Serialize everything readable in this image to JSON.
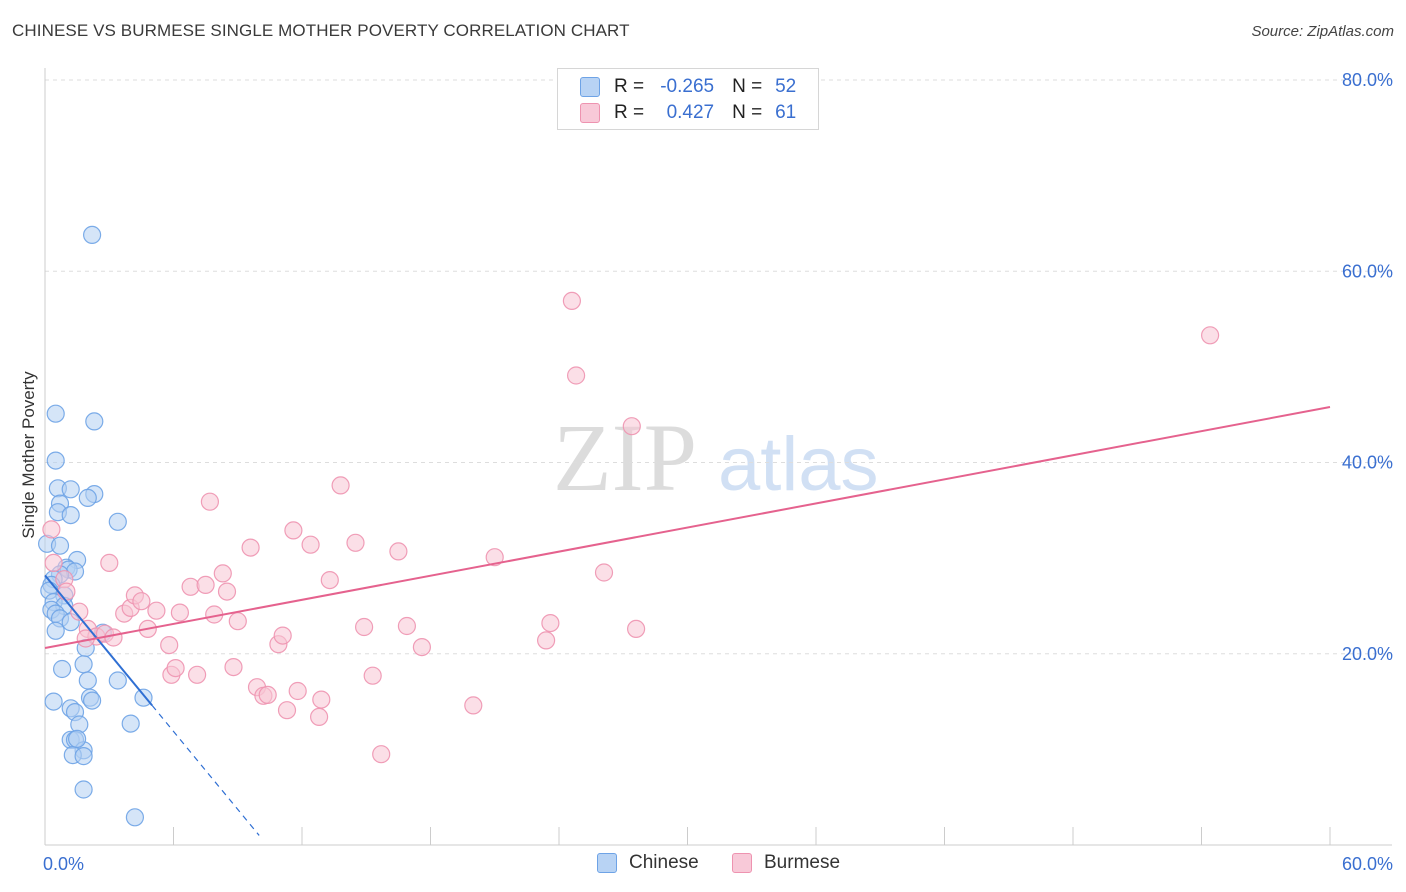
{
  "title": "CHINESE VS BURMESE SINGLE MOTHER POVERTY CORRELATION CHART",
  "source": "Source: ZipAtlas.com",
  "watermark": {
    "zip": "ZIP",
    "atlas": "atlas"
  },
  "legend": {
    "rows": [
      {
        "r_label": "R =",
        "r_value": "-0.265",
        "n_label": "N =",
        "n_value": "52",
        "color": "#6ea3e6",
        "fill": "#b8d3f4"
      },
      {
        "r_label": "R =",
        "r_value": "0.427",
        "n_label": "N =",
        "n_value": "61",
        "color": "#ee93b0",
        "fill": "#f8c9d8"
      }
    ]
  },
  "series_legend": [
    {
      "label": "Chinese",
      "color": "#6ea3e6",
      "fill": "#b8d3f4"
    },
    {
      "label": "Burmese",
      "color": "#ee93b0",
      "fill": "#f8c9d8"
    }
  ],
  "colors": {
    "chinese_stroke": "#6ea3e6",
    "chinese_fill": "#b3cff2",
    "chinese_line": "#2f6fd3",
    "burmese_stroke": "#ee93b0",
    "burmese_fill": "#f7c4d4",
    "burmese_line": "#e5628e",
    "axis_label": "#3a6fd0",
    "grid": "#dddddd"
  },
  "chart_data": {
    "type": "scatter",
    "title": "CHINESE VS BURMESE SINGLE MOTHER POVERTY CORRELATION CHART",
    "xlabel": "",
    "ylabel": "Single Mother Poverty",
    "xlim": [
      0,
      60
    ],
    "ylim": [
      0,
      80
    ],
    "x_tick_labels": [
      {
        "value": 0,
        "label": "0.0%"
      },
      {
        "value": 60,
        "label": "60.0%"
      }
    ],
    "y_tick_labels": [
      {
        "value": 20,
        "label": "20.0%"
      },
      {
        "value": 40,
        "label": "40.0%"
      },
      {
        "value": 60,
        "label": "60.0%"
      },
      {
        "value": 80,
        "label": "80.0%"
      }
    ],
    "x_minor_ticks": [
      0,
      6,
      12,
      18,
      24,
      30,
      36,
      42,
      48,
      54,
      60
    ],
    "series": [
      {
        "name": "Chinese",
        "points": [
          [
            2.2,
            63.8
          ],
          [
            0.5,
            45.1
          ],
          [
            2.3,
            44.3
          ],
          [
            0.5,
            40.2
          ],
          [
            0.6,
            37.3
          ],
          [
            1.2,
            37.2
          ],
          [
            2.3,
            36.7
          ],
          [
            2.0,
            36.3
          ],
          [
            0.7,
            35.7
          ],
          [
            0.6,
            34.8
          ],
          [
            1.2,
            34.5
          ],
          [
            3.4,
            33.8
          ],
          [
            0.1,
            31.5
          ],
          [
            0.7,
            31.3
          ],
          [
            1.5,
            29.8
          ],
          [
            1.0,
            29.0
          ],
          [
            1.1,
            28.8
          ],
          [
            1.4,
            28.6
          ],
          [
            0.7,
            28.3
          ],
          [
            0.4,
            27.8
          ],
          [
            0.3,
            27.2
          ],
          [
            0.2,
            26.6
          ],
          [
            0.9,
            26.1
          ],
          [
            0.4,
            25.4
          ],
          [
            0.9,
            25.0
          ],
          [
            0.3,
            24.6
          ],
          [
            0.5,
            24.2
          ],
          [
            0.7,
            23.7
          ],
          [
            1.2,
            23.3
          ],
          [
            0.5,
            22.4
          ],
          [
            2.7,
            22.2
          ],
          [
            1.9,
            20.6
          ],
          [
            0.8,
            18.4
          ],
          [
            1.8,
            18.9
          ],
          [
            2.0,
            17.2
          ],
          [
            3.4,
            17.2
          ],
          [
            2.1,
            15.4
          ],
          [
            2.2,
            15.1
          ],
          [
            4.6,
            15.4
          ],
          [
            0.4,
            15.0
          ],
          [
            1.2,
            14.3
          ],
          [
            1.4,
            13.9
          ],
          [
            1.6,
            12.6
          ],
          [
            4.0,
            12.7
          ],
          [
            1.2,
            11.0
          ],
          [
            1.4,
            11.0
          ],
          [
            1.8,
            9.9
          ],
          [
            1.3,
            9.4
          ],
          [
            1.8,
            9.3
          ],
          [
            1.8,
            5.8
          ],
          [
            4.2,
            2.9
          ],
          [
            1.5,
            11.1
          ]
        ]
      },
      {
        "name": "Burmese",
        "points": [
          [
            0.3,
            33.0
          ],
          [
            0.4,
            29.5
          ],
          [
            0.9,
            27.8
          ],
          [
            1.0,
            26.5
          ],
          [
            1.6,
            24.4
          ],
          [
            2.0,
            22.6
          ],
          [
            2.4,
            21.8
          ],
          [
            2.8,
            22.1
          ],
          [
            3.2,
            21.7
          ],
          [
            1.9,
            21.6
          ],
          [
            3.0,
            29.5
          ],
          [
            3.7,
            24.2
          ],
          [
            4.0,
            24.8
          ],
          [
            4.2,
            26.1
          ],
          [
            4.5,
            25.5
          ],
          [
            4.8,
            22.6
          ],
          [
            5.2,
            24.5
          ],
          [
            5.9,
            17.8
          ],
          [
            5.8,
            20.9
          ],
          [
            6.1,
            18.5
          ],
          [
            6.3,
            24.3
          ],
          [
            6.8,
            27.0
          ],
          [
            7.1,
            17.8
          ],
          [
            7.5,
            27.2
          ],
          [
            7.7,
            35.9
          ],
          [
            7.9,
            24.1
          ],
          [
            8.3,
            28.4
          ],
          [
            8.5,
            26.5
          ],
          [
            8.8,
            18.6
          ],
          [
            9.0,
            23.4
          ],
          [
            9.6,
            31.1
          ],
          [
            9.9,
            16.5
          ],
          [
            10.2,
            15.6
          ],
          [
            10.4,
            15.7
          ],
          [
            10.9,
            21.0
          ],
          [
            11.1,
            21.9
          ],
          [
            11.3,
            14.1
          ],
          [
            11.6,
            32.9
          ],
          [
            11.8,
            16.1
          ],
          [
            12.4,
            31.4
          ],
          [
            12.9,
            15.2
          ],
          [
            12.8,
            13.4
          ],
          [
            13.8,
            37.6
          ],
          [
            13.3,
            27.7
          ],
          [
            14.5,
            31.6
          ],
          [
            14.9,
            22.8
          ],
          [
            15.3,
            17.7
          ],
          [
            15.7,
            9.5
          ],
          [
            16.5,
            30.7
          ],
          [
            16.9,
            22.9
          ],
          [
            17.6,
            20.7
          ],
          [
            20.0,
            14.6
          ],
          [
            21.0,
            30.1
          ],
          [
            23.4,
            21.4
          ],
          [
            23.6,
            23.2
          ],
          [
            24.6,
            56.9
          ],
          [
            24.8,
            49.1
          ],
          [
            26.1,
            28.5
          ],
          [
            27.4,
            43.8
          ],
          [
            27.6,
            22.6
          ],
          [
            54.4,
            53.3
          ]
        ]
      }
    ],
    "trendlines": [
      {
        "series": "Chinese",
        "x1": 0,
        "y1": 28.2,
        "x2": 5.0,
        "y2": 14.6,
        "dashed_to_x": 10.0,
        "dashed_to_y": 1.0
      },
      {
        "series": "Burmese",
        "x1": 0,
        "y1": 20.6,
        "x2": 60,
        "y2": 45.8
      }
    ]
  }
}
